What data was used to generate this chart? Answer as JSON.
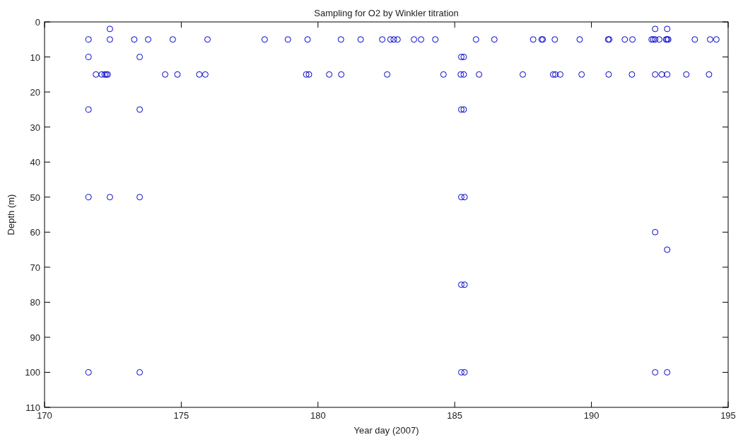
{
  "chart_data": {
    "type": "scatter",
    "title": "Sampling for O2 by Winkler titration",
    "xlabel": "Year day (2007)",
    "ylabel": "Depth (m)",
    "xlim": [
      170,
      195
    ],
    "xticks": [
      170,
      175,
      180,
      185,
      190,
      195
    ],
    "ylim": [
      110,
      0
    ],
    "yticks": [
      0,
      10,
      20,
      30,
      40,
      50,
      60,
      70,
      80,
      90,
      100,
      110
    ],
    "marker": "circle",
    "grid": false,
    "series": [
      {
        "color": "#0000cc",
        "x": [
          171.61,
          172.39,
          173.28,
          173.79,
          174.69,
          175.96,
          178.05,
          178.9,
          179.62,
          180.84,
          181.56,
          182.35,
          182.65,
          182.77,
          182.91,
          183.51,
          183.77,
          184.29,
          185.78,
          186.45,
          187.87,
          188.18,
          188.22,
          188.66,
          189.57,
          190.61,
          190.65,
          191.22,
          191.5,
          192.2,
          192.26,
          192.33,
          192.48,
          192.73,
          192.77,
          192.81,
          193.78,
          194.34,
          194.57,
          172.39,
          192.33,
          192.77,
          171.61,
          173.48,
          185.24,
          185.33,
          171.88,
          172.09,
          172.2,
          172.26,
          172.31,
          174.41,
          174.86,
          175.66,
          175.88,
          179.57,
          179.67,
          180.41,
          180.85,
          182.53,
          184.59,
          185.22,
          185.33,
          185.89,
          187.49,
          188.6,
          188.68,
          188.86,
          189.64,
          190.63,
          191.48,
          192.33,
          192.57,
          192.77,
          193.47,
          194.3,
          171.61,
          173.48,
          185.24,
          185.33,
          171.61,
          172.39,
          173.48,
          185.24,
          185.36,
          192.33,
          192.77,
          185.24,
          185.36,
          171.61,
          173.48,
          185.24,
          185.36,
          192.33,
          192.77
        ],
        "values": [
          5,
          5,
          5,
          5,
          5,
          5,
          5,
          5,
          5,
          5,
          5,
          5,
          5,
          5,
          5,
          5,
          5,
          5,
          5,
          5,
          5,
          5,
          5,
          5,
          5,
          5,
          5,
          5,
          5,
          5,
          5,
          5,
          5,
          5,
          5,
          5,
          5,
          5,
          5,
          2,
          2,
          2,
          10,
          10,
          10,
          10,
          15,
          15,
          15,
          15,
          15,
          15,
          15,
          15,
          15,
          15,
          15,
          15,
          15,
          15,
          15,
          15,
          15,
          15,
          15,
          15,
          15,
          15,
          15,
          15,
          15,
          15,
          15,
          15,
          15,
          15,
          25,
          25,
          25,
          25,
          50,
          50,
          50,
          50,
          50,
          60,
          65,
          75,
          75,
          100,
          100,
          100,
          100,
          100,
          100
        ]
      }
    ]
  }
}
